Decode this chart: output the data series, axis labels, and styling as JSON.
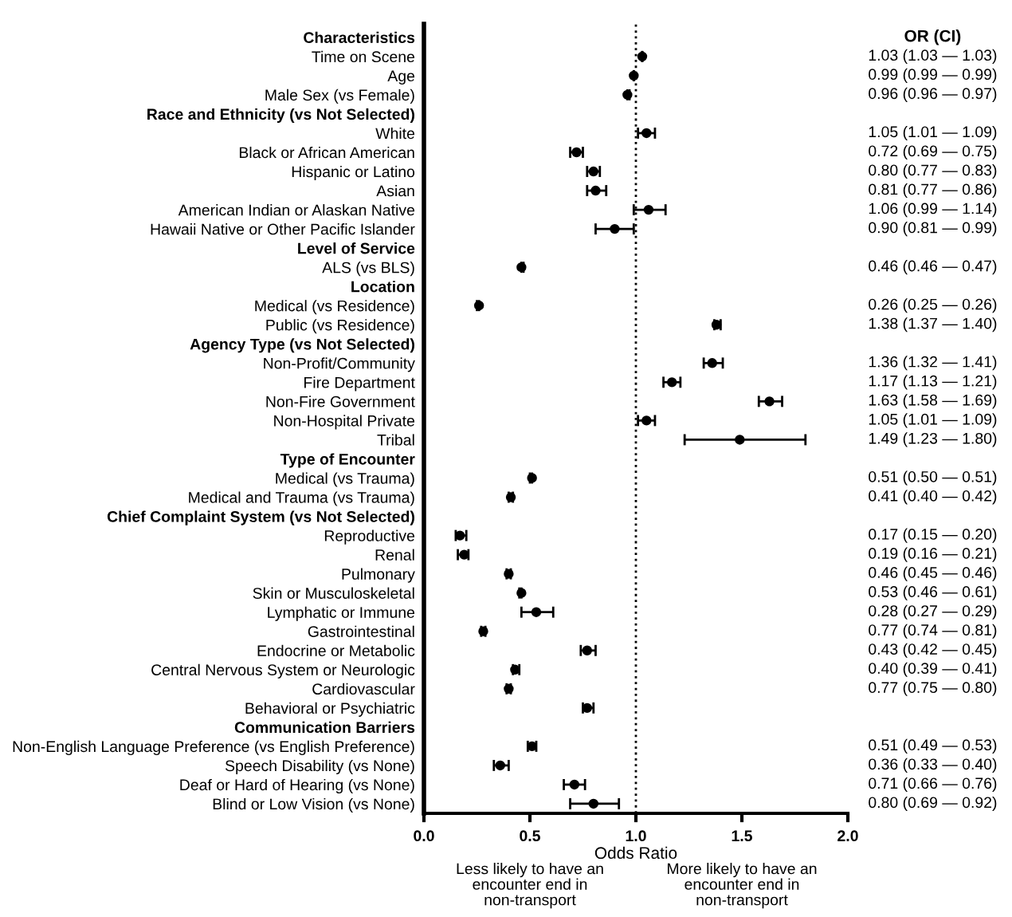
{
  "chart_data": {
    "type": "scatter",
    "xlabel": "Odds Ratio",
    "categories": [
      "Characteristics",
      "Time on Scene",
      "Age",
      "Male Sex (vs Female)",
      "Race and Ethnicity (vs Not Selected)",
      "White",
      "Black or African American",
      "Hispanic or Latino",
      "Asian",
      "American Indian or Alaskan Native",
      "Hawaii Native or Other Pacific Islander",
      "Level of Service",
      "ALS (vs BLS)",
      "Location",
      "Medical (vs Residence)",
      "Public (vs Residence)",
      "Agency Type (vs Not Selected)",
      "Non-Profit/Community",
      "Fire Department",
      "Non-Fire Government",
      "Non-Hospital Private",
      "Tribal",
      "Type of Encounter",
      "Medical (vs Trauma)",
      "Medical and Trauma (vs Trauma)",
      "Chief Complaint System (vs Not Selected)",
      "Reproductive",
      "Renal",
      "Pulmonary",
      "Skin or Musculoskeletal",
      "Lymphatic or Immune",
      "Gastrointestinal",
      "Endocrine or Metabolic",
      "Central Nervous System or Neurologic",
      "Cardiovascular",
      "Behavioral or Psychiatric",
      "Communication Barriers",
      "Non-English Language Preference (vs English Preference)",
      "Speech Disability (vs None)",
      "Deaf or Hard of Hearing (vs None)",
      "Blind or Low Vision (vs None)"
    ],
    "values": [
      null,
      1.03,
      0.99,
      0.96,
      null,
      1.05,
      0.72,
      0.8,
      0.81,
      1.06,
      0.9,
      null,
      0.46,
      null,
      0.26,
      1.38,
      null,
      1.36,
      1.17,
      1.63,
      1.05,
      1.49,
      null,
      0.51,
      0.41,
      null,
      0.17,
      0.19,
      0.4,
      0.46,
      0.53,
      0.28,
      0.77,
      0.43,
      0.4,
      0.77,
      null,
      0.51,
      0.36,
      0.71,
      0.8
    ],
    "errors": [
      null,
      [
        1.03,
        1.03
      ],
      [
        0.99,
        0.99
      ],
      [
        0.96,
        0.97
      ],
      null,
      [
        1.01,
        1.09
      ],
      [
        0.69,
        0.75
      ],
      [
        0.77,
        0.83
      ],
      [
        0.77,
        0.86
      ],
      [
        0.99,
        1.14
      ],
      [
        0.81,
        0.99
      ],
      null,
      [
        0.46,
        0.47
      ],
      null,
      [
        0.25,
        0.26
      ],
      [
        1.37,
        1.4
      ],
      null,
      [
        1.32,
        1.41
      ],
      [
        1.13,
        1.21
      ],
      [
        1.58,
        1.69
      ],
      [
        1.01,
        1.09
      ],
      [
        1.23,
        1.8
      ],
      null,
      [
        0.5,
        0.51
      ],
      [
        0.4,
        0.42
      ],
      null,
      [
        0.15,
        0.2
      ],
      [
        0.16,
        0.21
      ],
      [
        0.39,
        0.41
      ],
      [
        0.45,
        0.46
      ],
      [
        0.46,
        0.61
      ],
      [
        0.27,
        0.29
      ],
      [
        0.74,
        0.81
      ],
      [
        0.42,
        0.45
      ],
      [
        0.39,
        0.41
      ],
      [
        0.75,
        0.8
      ],
      null,
      [
        0.49,
        0.53
      ],
      [
        0.33,
        0.4
      ],
      [
        0.66,
        0.76
      ],
      [
        0.69,
        0.92
      ]
    ],
    "value_labels": [
      null,
      "1.03 (1.03 — 1.03)",
      "0.99 (0.99 — 0.99)",
      "0.96 (0.96 — 0.97)",
      null,
      "1.05 (1.01 — 1.09)",
      "0.72 (0.69 — 0.75)",
      "0.80 (0.77 — 0.83)",
      "0.81 (0.77 — 0.86)",
      "1.06 (0.99 — 1.14)",
      "0.90 (0.81 — 0.99)",
      null,
      "0.46 (0.46 — 0.47)",
      null,
      "0.26 (0.25 — 0.26)",
      "1.38 (1.37 — 1.40)",
      null,
      "1.36 (1.32 — 1.41)",
      "1.17 (1.13 — 1.21)",
      "1.63 (1.58 — 1.69)",
      "1.05 (1.01 — 1.09)",
      "1.49 (1.23 — 1.80)",
      null,
      "0.51 (0.50 — 0.51)",
      "0.41 (0.40 — 0.42)",
      null,
      "0.17 (0.15 — 0.20)",
      "0.19 (0.16 — 0.21)",
      "0.46 (0.45 — 0.46)",
      "0.53 (0.46 — 0.61)",
      "0.28 (0.27 — 0.29)",
      "0.77 (0.74 — 0.81)",
      "0.43 (0.42 — 0.45)",
      "0.40 (0.39 — 0.41)",
      "0.77 (0.75 — 0.80)",
      null,
      null,
      "0.51 (0.49 — 0.53)",
      "0.36 (0.33 — 0.40)",
      "0.71 (0.66 — 0.76)",
      "0.80 (0.69 — 0.92)"
    ],
    "color": "#000000",
    "marker": "circle",
    "orientation": "horizontal",
    "xlim": [
      0,
      2
    ],
    "xticks": [
      {
        "value": 0,
        "label": "0.0"
      },
      {
        "value": 0.5,
        "label": "0.5"
      },
      {
        "value": 1,
        "label": "1.0"
      },
      {
        "value": 1.5,
        "label": "1.5"
      },
      {
        "value": 2,
        "label": "2.0"
      }
    ],
    "ref_lines": [
      {
        "axis": "x",
        "value": 1,
        "color": "#000000",
        "line_style": "dotted"
      }
    ],
    "annotations": [
      "OR (CI)",
      "Less likely to have an encounter end in non-transport",
      "More likely to have an encounter end in non-transport"
    ]
  }
}
